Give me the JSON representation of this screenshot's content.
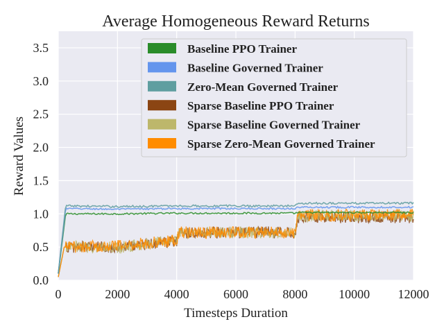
{
  "chart_data": {
    "type": "line",
    "title": "Average Homogeneous Reward Returns",
    "xlabel": "Timesteps Duration",
    "ylabel": "Reward Values",
    "xlim": [
      0,
      12000
    ],
    "ylim": [
      0.0,
      3.75
    ],
    "xticks": [
      0,
      2000,
      4000,
      6000,
      8000,
      10000,
      12000
    ],
    "xtick_labels": [
      "0",
      "2000",
      "4000",
      "6000",
      "8000",
      "10000",
      "12000"
    ],
    "yticks": [
      0.0,
      0.5,
      1.0,
      1.5,
      2.0,
      2.5,
      3.0,
      3.5
    ],
    "ytick_labels": [
      "0.0",
      "0.5",
      "1.0",
      "1.5",
      "2.0",
      "2.5",
      "3.0",
      "3.5"
    ],
    "grid": true,
    "legend_position": "upper-right",
    "background": "#eaeaf2",
    "series": [
      {
        "name": "Baseline PPO Trainer",
        "color": "#2a8c2a",
        "noise": 0.012,
        "points": [
          [
            0,
            0.1
          ],
          [
            250,
            1.0
          ],
          [
            2000,
            1.0
          ],
          [
            4000,
            1.01
          ],
          [
            8000,
            1.01
          ],
          [
            8100,
            1.02
          ],
          [
            12000,
            1.02
          ]
        ]
      },
      {
        "name": "Baseline Governed Trainer",
        "color": "#6495ed",
        "noise": 0.012,
        "points": [
          [
            0,
            0.1
          ],
          [
            250,
            1.08
          ],
          [
            2000,
            1.07
          ],
          [
            4000,
            1.08
          ],
          [
            8000,
            1.08
          ],
          [
            8100,
            1.1
          ],
          [
            12000,
            1.1
          ]
        ]
      },
      {
        "name": "Zero-Mean Governed Trainer",
        "color": "#5f9ea0",
        "noise": 0.015,
        "points": [
          [
            0,
            0.1
          ],
          [
            250,
            1.12
          ],
          [
            2000,
            1.11
          ],
          [
            4000,
            1.12
          ],
          [
            8000,
            1.12
          ],
          [
            8100,
            1.16
          ],
          [
            12000,
            1.16
          ]
        ]
      },
      {
        "name": "Sparse Baseline PPO Trainer",
        "color": "#8b4513",
        "noise": 0.09,
        "points": [
          [
            0,
            0.05
          ],
          [
            200,
            0.5
          ],
          [
            2000,
            0.5
          ],
          [
            2100,
            0.5
          ],
          [
            4000,
            0.6
          ],
          [
            4100,
            0.72
          ],
          [
            8000,
            0.72
          ],
          [
            8100,
            0.95
          ],
          [
            12000,
            0.95
          ]
        ]
      },
      {
        "name": "Sparse Baseline Governed Trainer",
        "color": "#bdb76b",
        "noise": 0.09,
        "points": [
          [
            0,
            0.05
          ],
          [
            200,
            0.5
          ],
          [
            2000,
            0.5
          ],
          [
            2100,
            0.5
          ],
          [
            4000,
            0.6
          ],
          [
            4100,
            0.72
          ],
          [
            8000,
            0.72
          ],
          [
            8100,
            0.97
          ],
          [
            12000,
            0.97
          ]
        ]
      },
      {
        "name": "Sparse Zero-Mean Governed Trainer",
        "color": "#ff8c00",
        "noise": 0.09,
        "points": [
          [
            0,
            0.05
          ],
          [
            200,
            0.5
          ],
          [
            2000,
            0.52
          ],
          [
            2100,
            0.52
          ],
          [
            4000,
            0.6
          ],
          [
            4100,
            0.72
          ],
          [
            8000,
            0.72
          ],
          [
            8100,
            0.98
          ],
          [
            12000,
            0.98
          ]
        ]
      }
    ]
  }
}
